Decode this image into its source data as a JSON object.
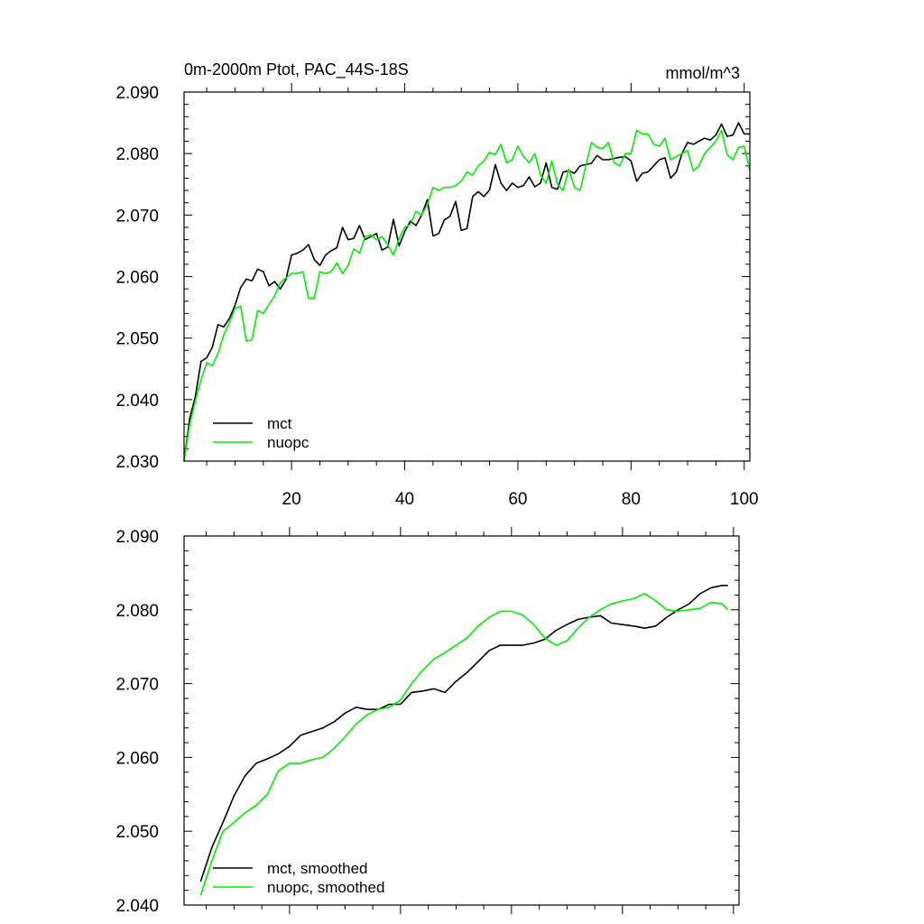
{
  "figure": {
    "title_left": "0m-2000m Ptot, PAC_44S-18S",
    "title_right": "mmol/m^3"
  },
  "colors": {
    "mct": "#000000",
    "nuopc": "#00ee00",
    "axis": "#000000"
  },
  "chart_data": [
    {
      "type": "line",
      "xlim": [
        1,
        101
      ],
      "ylim": [
        2.03,
        2.09
      ],
      "x_ticks": [
        20,
        40,
        60,
        80,
        100
      ],
      "x_tick_labels": [
        "20",
        "40",
        "60",
        "80",
        "100"
      ],
      "y_ticks": [
        2.03,
        2.04,
        2.05,
        2.06,
        2.07,
        2.08,
        2.09
      ],
      "y_tick_labels": [
        "2.030",
        "2.040",
        "2.050",
        "2.060",
        "2.070",
        "2.080",
        "2.090"
      ],
      "legend_position": "bottom-left",
      "series": [
        {
          "name": "mct",
          "color": "#000000",
          "x": [
            1,
            2,
            3,
            4,
            5,
            6,
            7,
            8,
            9,
            10,
            11,
            12,
            13,
            14,
            15,
            16,
            17,
            18,
            19,
            20,
            21,
            22,
            23,
            24,
            25,
            26,
            27,
            28,
            29,
            30,
            31,
            32,
            33,
            34,
            35,
            36,
            37,
            38,
            39,
            40,
            41,
            42,
            43,
            44,
            45,
            46,
            47,
            48,
            49,
            50,
            51,
            52,
            53,
            54,
            55,
            56,
            57,
            58,
            59,
            60,
            61,
            62,
            63,
            64,
            65,
            66,
            67,
            68,
            69,
            70,
            71,
            72,
            73,
            74,
            75,
            76,
            77,
            78,
            79,
            80,
            81,
            82,
            83,
            84,
            85,
            86,
            87,
            88,
            89,
            90,
            91,
            92,
            93,
            94,
            95,
            96,
            97,
            98,
            99,
            100,
            101
          ],
          "values": [
            2.03,
            2.037,
            2.0405,
            2.0462,
            2.0468,
            2.0485,
            2.0522,
            2.0518,
            2.0532,
            2.0553,
            2.0582,
            2.0596,
            2.0593,
            2.0612,
            2.0608,
            2.0585,
            2.0592,
            2.058,
            2.0595,
            2.0635,
            2.0638,
            2.0643,
            2.0652,
            2.0628,
            2.0618,
            2.0635,
            2.0642,
            2.0647,
            2.068,
            2.066,
            2.0662,
            2.0683,
            2.066,
            2.0665,
            2.067,
            2.0643,
            2.0648,
            2.0693,
            2.065,
            2.0673,
            2.069,
            2.0683,
            2.07,
            2.0725,
            2.0666,
            2.067,
            2.0692,
            2.0698,
            2.0722,
            2.0675,
            2.0678,
            2.073,
            2.0738,
            2.073,
            2.0741,
            2.0782,
            2.0752,
            2.074,
            2.0752,
            2.0745,
            2.0748,
            2.0762,
            2.0746,
            2.0752,
            2.0785,
            2.0745,
            2.0742,
            2.077,
            2.0772,
            2.0768,
            2.078,
            2.0782,
            2.0784,
            2.0797,
            2.079,
            2.079,
            2.0792,
            2.0794,
            2.0795,
            2.0788,
            2.0755,
            2.0768,
            2.077,
            2.078,
            2.079,
            2.0793,
            2.076,
            2.077,
            2.08,
            2.0818,
            2.0815,
            2.082,
            2.0825,
            2.0822,
            2.083,
            2.0848,
            2.0828,
            2.083,
            2.085,
            2.0832,
            2.0832
          ]
        },
        {
          "name": "nuopc",
          "color": "#00ee00",
          "x": [
            1,
            2,
            3,
            4,
            5,
            6,
            7,
            8,
            9,
            10,
            11,
            12,
            13,
            14,
            15,
            16,
            17,
            18,
            19,
            20,
            21,
            22,
            23,
            24,
            25,
            26,
            27,
            28,
            29,
            30,
            31,
            32,
            33,
            34,
            35,
            36,
            37,
            38,
            39,
            40,
            41,
            42,
            43,
            44,
            45,
            46,
            47,
            48,
            49,
            50,
            51,
            52,
            53,
            54,
            55,
            56,
            57,
            58,
            59,
            60,
            61,
            62,
            63,
            64,
            65,
            66,
            67,
            68,
            69,
            70,
            71,
            72,
            73,
            74,
            75,
            76,
            77,
            78,
            79,
            80,
            81,
            82,
            83,
            84,
            85,
            86,
            87,
            88,
            89,
            90,
            91,
            92,
            93,
            94,
            95,
            96,
            97,
            98,
            99,
            100,
            101
          ],
          "values": [
            2.03,
            2.036,
            2.0398,
            2.0432,
            2.046,
            2.0455,
            2.0475,
            2.0505,
            2.0525,
            2.0548,
            2.0552,
            2.0495,
            2.0497,
            2.0545,
            2.054,
            2.0555,
            2.0568,
            2.059,
            2.0598,
            2.0605,
            2.0605,
            2.0608,
            2.0565,
            2.0565,
            2.0608,
            2.0605,
            2.0608,
            2.0622,
            2.0605,
            2.0618,
            2.0645,
            2.0638,
            2.0665,
            2.0668,
            2.066,
            2.0665,
            2.0652,
            2.0635,
            2.0662,
            2.068,
            2.0685,
            2.0706,
            2.07,
            2.0717,
            2.0745,
            2.074,
            2.0745,
            2.0745,
            2.0748,
            2.0755,
            2.077,
            2.0765,
            2.078,
            2.0788,
            2.0802,
            2.0798,
            2.0815,
            2.0785,
            2.079,
            2.0812,
            2.0795,
            2.0785,
            2.08,
            2.0765,
            2.0752,
            2.0788,
            2.075,
            2.074,
            2.0775,
            2.0745,
            2.074,
            2.078,
            2.0818,
            2.081,
            2.0808,
            2.0818,
            2.0785,
            2.078,
            2.08,
            2.08,
            2.0838,
            2.0832,
            2.0832,
            2.0815,
            2.0812,
            2.0825,
            2.079,
            2.0795,
            2.08,
            2.0805,
            2.0772,
            2.078,
            2.08,
            2.081,
            2.082,
            2.0838,
            2.0798,
            2.079,
            2.081,
            2.0812,
            2.0772
          ]
        }
      ]
    },
    {
      "type": "line",
      "xlim": [
        1,
        101
      ],
      "ylim": [
        2.04,
        2.09
      ],
      "x_ticks": [
        20,
        40,
        60,
        80,
        100
      ],
      "y_ticks": [
        2.04,
        2.05,
        2.06,
        2.07,
        2.08,
        2.09
      ],
      "y_tick_labels": [
        "2.040",
        "2.050",
        "2.060",
        "2.070",
        "2.080",
        "2.090"
      ],
      "legend_position": "bottom-left",
      "series": [
        {
          "name": "mct, smoothed",
          "color": "#000000",
          "x": [
            4,
            6,
            8,
            10,
            12,
            14,
            16,
            18,
            20,
            22,
            24,
            26,
            28,
            30,
            32,
            34,
            36,
            38,
            40,
            42,
            44,
            46,
            48,
            50,
            52,
            54,
            56,
            58,
            60,
            62,
            64,
            66,
            68,
            70,
            72,
            74,
            76,
            78,
            80,
            82,
            84,
            86,
            88,
            90,
            92,
            94,
            96,
            98,
            99
          ],
          "values": [
            2.0432,
            2.0478,
            2.0512,
            2.0548,
            2.0575,
            2.0592,
            2.0598,
            2.0605,
            2.0615,
            2.063,
            2.0635,
            2.064,
            2.0648,
            2.066,
            2.0668,
            2.0665,
            2.0665,
            2.0672,
            2.0672,
            2.0688,
            2.069,
            2.0693,
            2.0688,
            2.0703,
            2.0715,
            2.073,
            2.0745,
            2.0752,
            2.0752,
            2.0752,
            2.0755,
            2.076,
            2.0772,
            2.078,
            2.0787,
            2.079,
            2.0792,
            2.0782,
            2.078,
            2.0778,
            2.0775,
            2.0778,
            2.079,
            2.08,
            2.0808,
            2.0822,
            2.083,
            2.0833,
            2.0833
          ]
        },
        {
          "name": "nuopc, smoothed",
          "color": "#00ee00",
          "x": [
            4,
            6,
            8,
            10,
            12,
            14,
            16,
            18,
            20,
            22,
            24,
            26,
            28,
            30,
            32,
            34,
            36,
            38,
            40,
            42,
            44,
            46,
            48,
            50,
            52,
            54,
            56,
            58,
            60,
            62,
            64,
            66,
            68,
            70,
            72,
            74,
            76,
            78,
            80,
            82,
            84,
            86,
            88,
            90,
            92,
            94,
            96,
            98,
            99
          ],
          "values": [
            2.0413,
            2.046,
            2.05,
            2.0512,
            2.0525,
            2.0535,
            2.055,
            2.0582,
            2.0592,
            2.0592,
            2.0597,
            2.06,
            2.0612,
            2.0628,
            2.0645,
            2.0658,
            2.0665,
            2.0668,
            2.0678,
            2.07,
            2.0718,
            2.0733,
            2.0742,
            2.0752,
            2.0762,
            2.0778,
            2.079,
            2.0798,
            2.0798,
            2.0793,
            2.078,
            2.0762,
            2.0752,
            2.0758,
            2.0775,
            2.079,
            2.08,
            2.0808,
            2.0812,
            2.0815,
            2.0822,
            2.0812,
            2.08,
            2.0798,
            2.08,
            2.0802,
            2.081,
            2.0808,
            2.08
          ]
        }
      ]
    }
  ]
}
